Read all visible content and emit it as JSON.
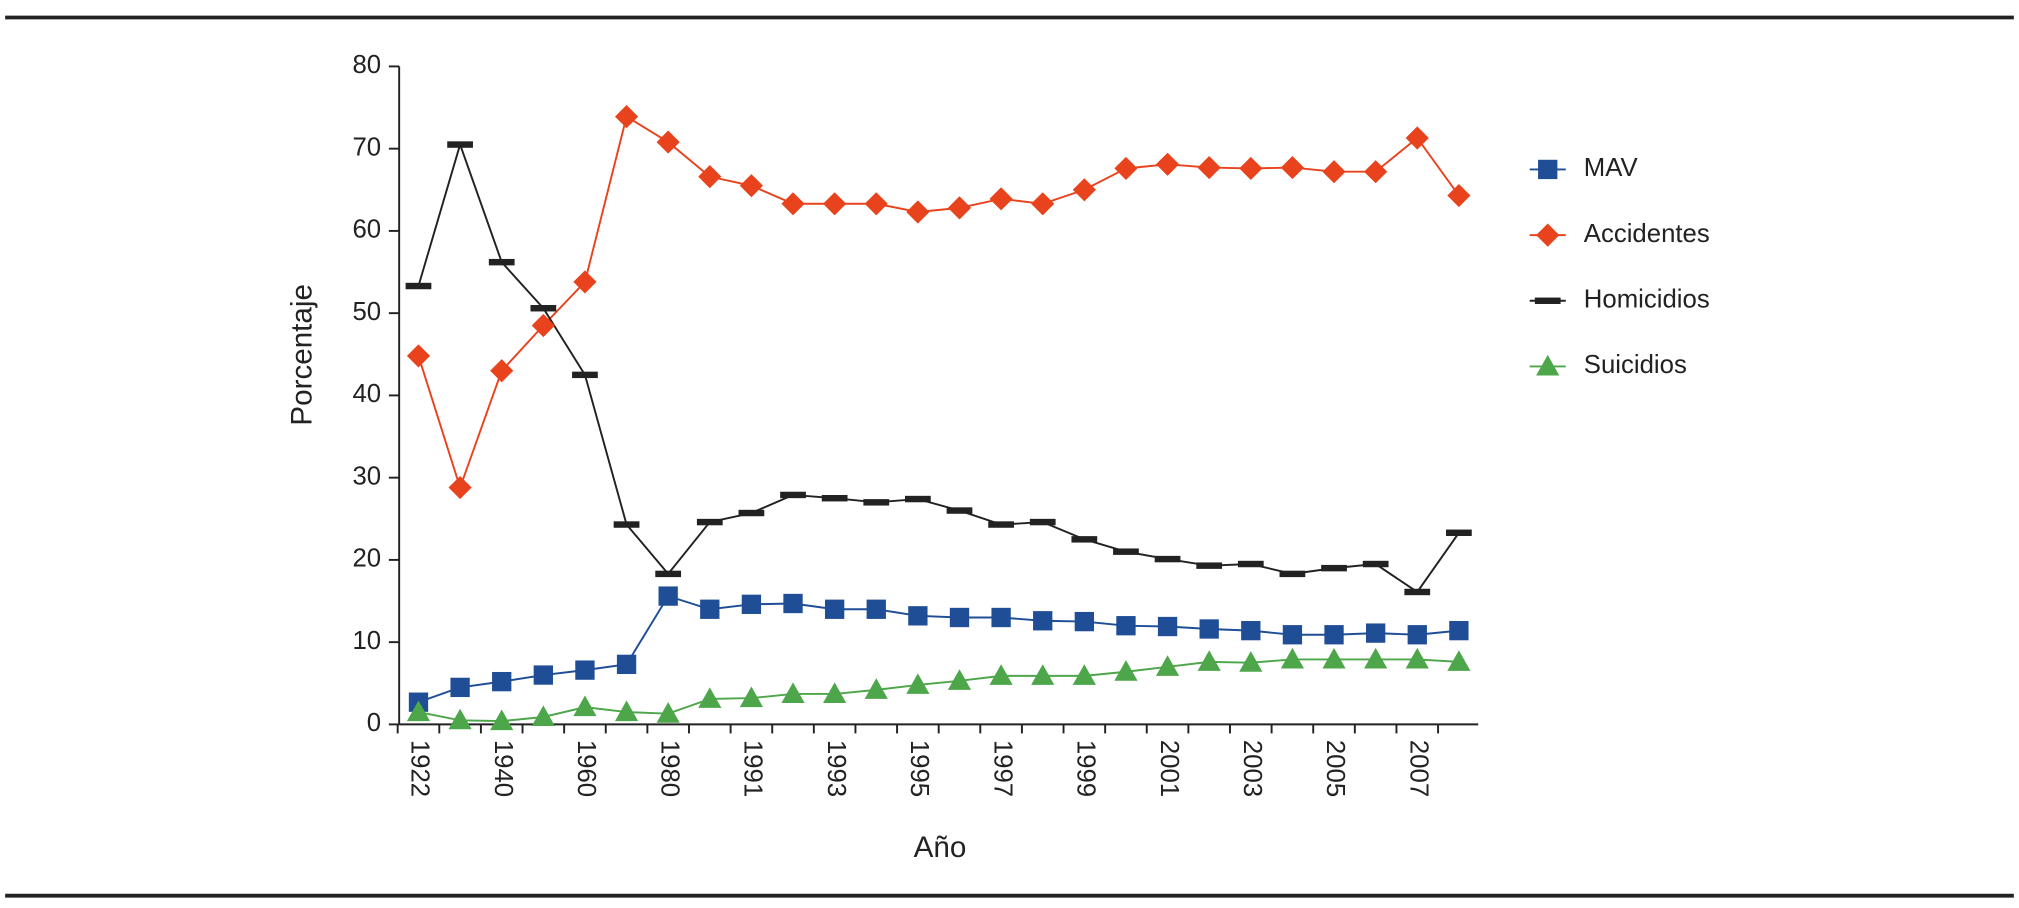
{
  "chart_data": {
    "type": "line",
    "x_label": "Año",
    "y_label": "Porcentaje",
    "categories": [
      "1922",
      null,
      "1940",
      null,
      "1960",
      null,
      "1980",
      null,
      "1991",
      null,
      "1993",
      null,
      "1995",
      null,
      "1997",
      null,
      "1999",
      null,
      "2001",
      null,
      "2003",
      null,
      "2005",
      null,
      "2007",
      null
    ],
    "ylim": [
      0,
      80
    ],
    "yticks": [
      0,
      10,
      20,
      30,
      40,
      50,
      60,
      70,
      80
    ],
    "series": [
      {
        "name": "MAV",
        "color": "#1f4e96",
        "marker": "square",
        "values": [
          2.7,
          4.5,
          5.2,
          6,
          6.6,
          7.3,
          15.6,
          14,
          14.6,
          14.7,
          14,
          14,
          13.2,
          13,
          13,
          12.6,
          12.5,
          12,
          11.9,
          11.6,
          11.4,
          10.9,
          10.9,
          11.1,
          10.9,
          11.4
        ]
      },
      {
        "name": "Accidentes",
        "color": "#e8431d",
        "marker": "diamond",
        "values": [
          44.8,
          28.8,
          43,
          48.5,
          53.8,
          73.9,
          70.8,
          66.6,
          65.5,
          63.3,
          63.3,
          63.3,
          62.3,
          62.8,
          63.9,
          63.3,
          65,
          67.6,
          68.1,
          67.7,
          67.6,
          67.7,
          67.2,
          67.2,
          71.3,
          64.3
        ]
      },
      {
        "name": "Homicidios",
        "color": "#222222",
        "marker": "dash",
        "values": [
          53.3,
          70.5,
          56.2,
          50.6,
          42.5,
          24.3,
          18.3,
          24.6,
          25.7,
          27.9,
          27.5,
          27,
          27.4,
          26,
          24.3,
          24.6,
          22.5,
          21,
          20.1,
          19.3,
          19.5,
          18.3,
          19,
          19.5,
          16.1,
          23.3
        ]
      },
      {
        "name": "Suicidios",
        "color": "#4ea64a",
        "marker": "triangle",
        "values": [
          1.5,
          0.5,
          0.4,
          0.9,
          2.1,
          1.5,
          1.3,
          3.1,
          3.2,
          3.7,
          3.7,
          4.2,
          4.8,
          5.3,
          5.9,
          5.9,
          5.9,
          6.4,
          7,
          7.6,
          7.5,
          7.9,
          7.9,
          7.9,
          7.9,
          7.6
        ]
      }
    ]
  }
}
